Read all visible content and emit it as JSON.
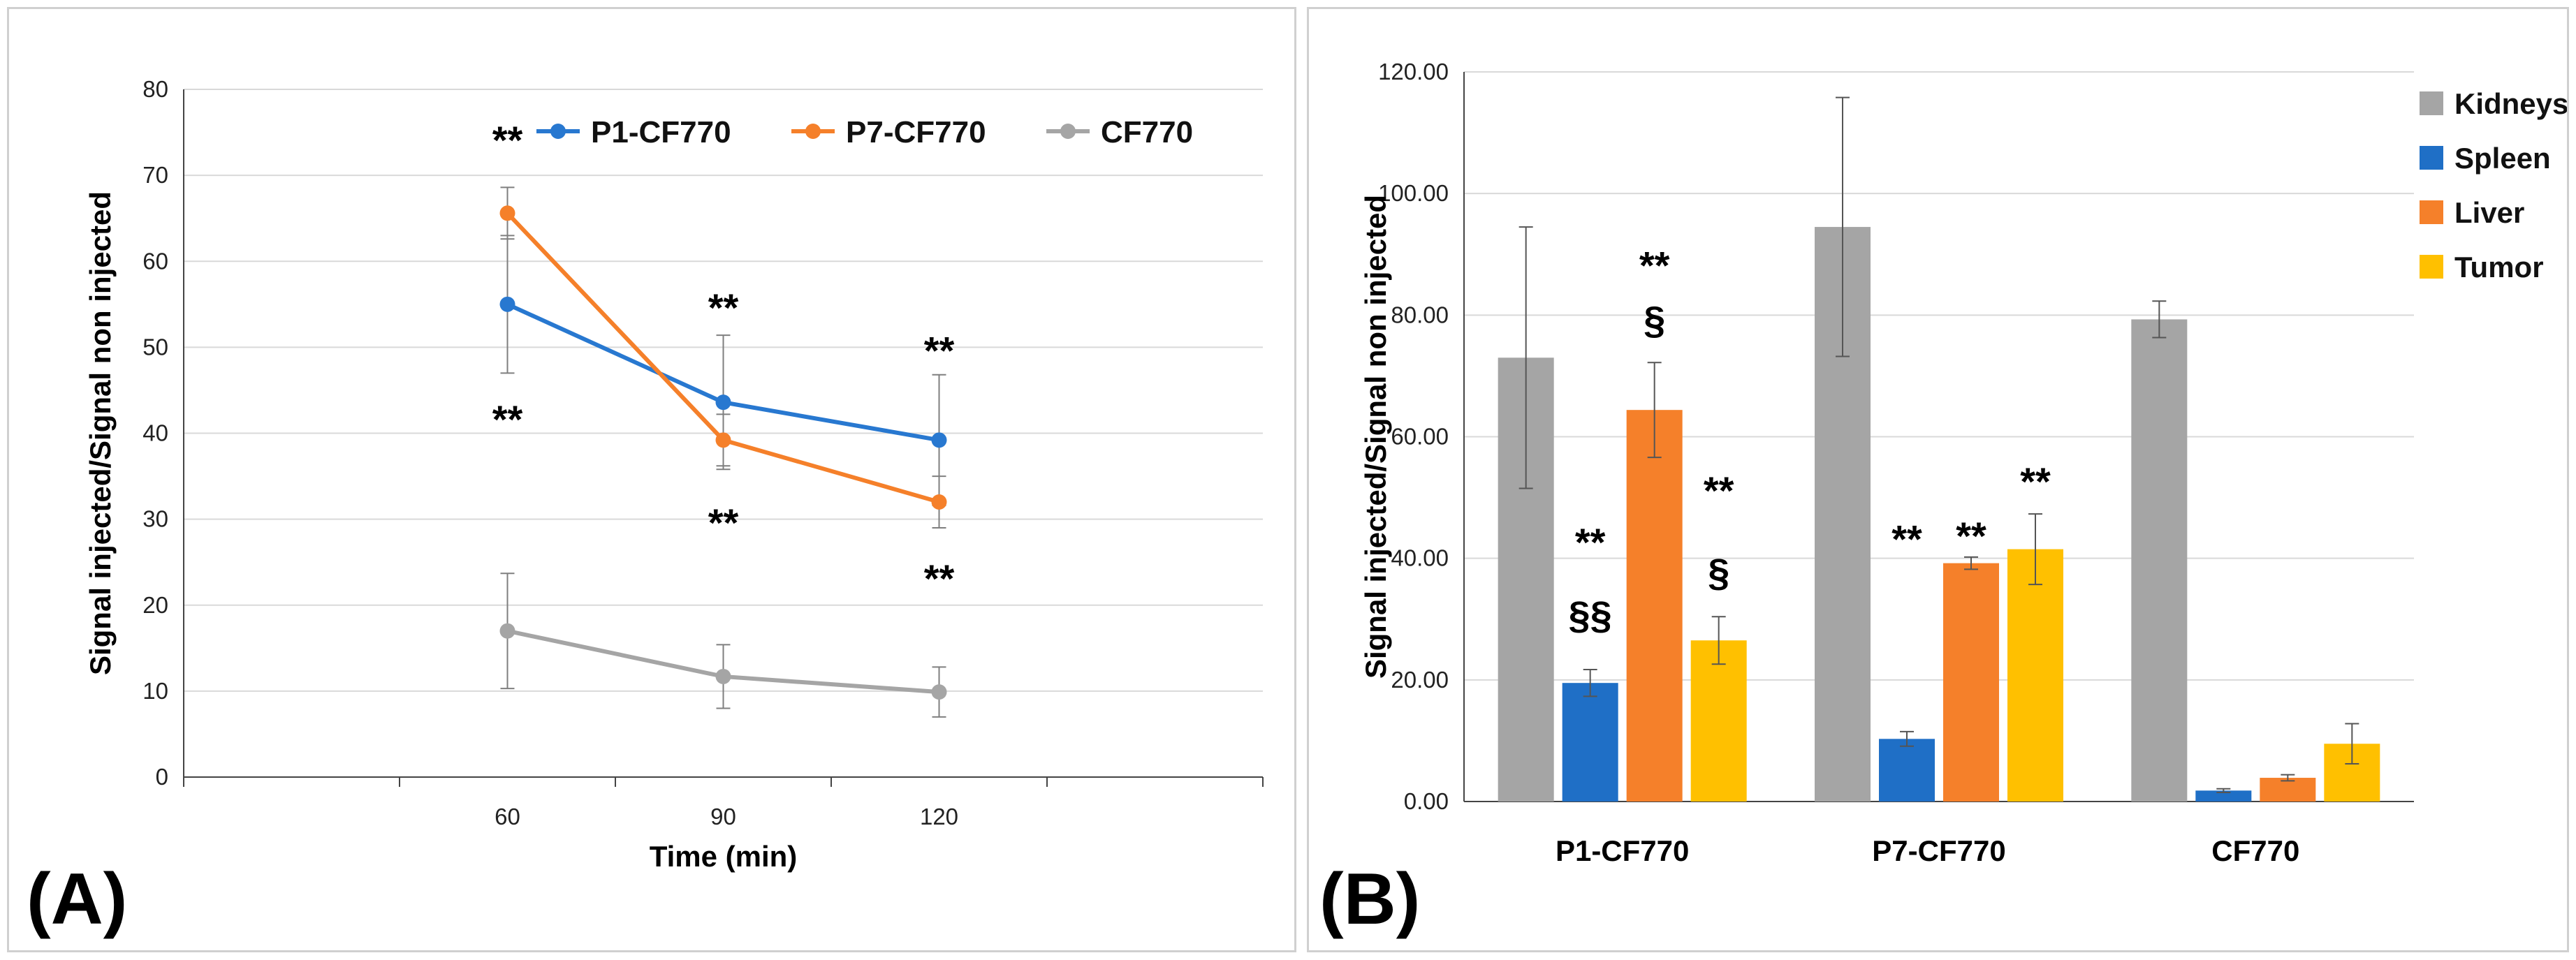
{
  "chart_data": [
    {
      "type": "line",
      "panel_label": "(A)",
      "title": "",
      "xlabel": "Time (min)",
      "ylabel": "Signal injected/Signal non injected",
      "x": [
        60,
        90,
        120
      ],
      "xlim": [
        15,
        165
      ],
      "ylim": [
        0,
        80
      ],
      "ytick_step": 10,
      "grid": true,
      "legend_position": "top-right",
      "series": [
        {
          "name": "P1-CF770",
          "color": "#2878d0",
          "values": [
            55,
            43.6,
            39.2
          ],
          "errors": [
            8,
            7.8,
            7.6
          ]
        },
        {
          "name": "P7-CF770",
          "color": "#f5802a",
          "values": [
            65.6,
            39.2,
            32
          ],
          "errors": [
            3,
            3,
            3
          ]
        },
        {
          "name": "CF770",
          "color": "#a5a5a5",
          "values": [
            17,
            11.7,
            9.9
          ],
          "errors": [
            6.7,
            3.7,
            2.9
          ]
        }
      ],
      "annotations": [
        {
          "text": "**",
          "x": 60,
          "y": 74,
          "color": "#000000"
        },
        {
          "text": "**",
          "x": 60,
          "y": 41.5,
          "color": "#000000"
        },
        {
          "text": "**",
          "x": 90,
          "y": 54.5,
          "color": "#000000"
        },
        {
          "text": "**",
          "x": 90,
          "y": 29.5,
          "color": "#000000"
        },
        {
          "text": "**",
          "x": 120,
          "y": 49.5,
          "color": "#000000"
        },
        {
          "text": "**",
          "x": 120,
          "y": 23,
          "color": "#000000"
        }
      ]
    },
    {
      "type": "bar",
      "panel_label": "(B)",
      "title": "",
      "xlabel": "",
      "ylabel": "Signal injected/Signal non injected",
      "categories": [
        "P1-CF770",
        "P7-CF770",
        "CF770"
      ],
      "ylim": [
        0,
        120
      ],
      "ytick_step": 20,
      "ytick_decimals": 2,
      "grid": true,
      "legend_position": "top-right",
      "series": [
        {
          "name": "Kidneys",
          "color": "#a5a5a5",
          "values": [
            73,
            94.5,
            79.3
          ],
          "errors": [
            21.5,
            21.3,
            3
          ]
        },
        {
          "name": "Spleen",
          "color": "#1f6fc6",
          "values": [
            19.5,
            10.3,
            1.8
          ],
          "errors": [
            2.2,
            1.2,
            0.3
          ]
        },
        {
          "name": "Liver",
          "color": "#f5802a",
          "values": [
            64.4,
            39.2,
            3.9
          ],
          "errors": [
            7.8,
            1,
            0.5
          ]
        },
        {
          "name": "Tumor",
          "color": "#ffc000",
          "values": [
            26.5,
            41.5,
            9.5
          ],
          "errors": [
            3.9,
            5.8,
            3.3
          ]
        }
      ],
      "annotations": [
        {
          "text": "**",
          "category": 0,
          "series": 2,
          "y": 88,
          "color": "#000000"
        },
        {
          "text": "§",
          "category": 0,
          "series": 2,
          "y": 79,
          "color": "#000000"
        },
        {
          "text": "**",
          "category": 0,
          "series": 1,
          "y": 42.5,
          "color": "#000000"
        },
        {
          "text": "§§",
          "category": 0,
          "series": 1,
          "y": 30.5,
          "color": "#000000"
        },
        {
          "text": "**",
          "category": 0,
          "series": 3,
          "y": 51,
          "color": "#000000"
        },
        {
          "text": "§",
          "category": 0,
          "series": 3,
          "y": 37.5,
          "color": "#000000"
        },
        {
          "text": "**",
          "category": 1,
          "series": 1,
          "y": 43,
          "color": "#000000"
        },
        {
          "text": "**",
          "category": 1,
          "series": 2,
          "y": 43.5,
          "color": "#000000"
        },
        {
          "text": "**",
          "category": 1,
          "series": 3,
          "y": 52.5,
          "color": "#000000"
        }
      ]
    }
  ]
}
